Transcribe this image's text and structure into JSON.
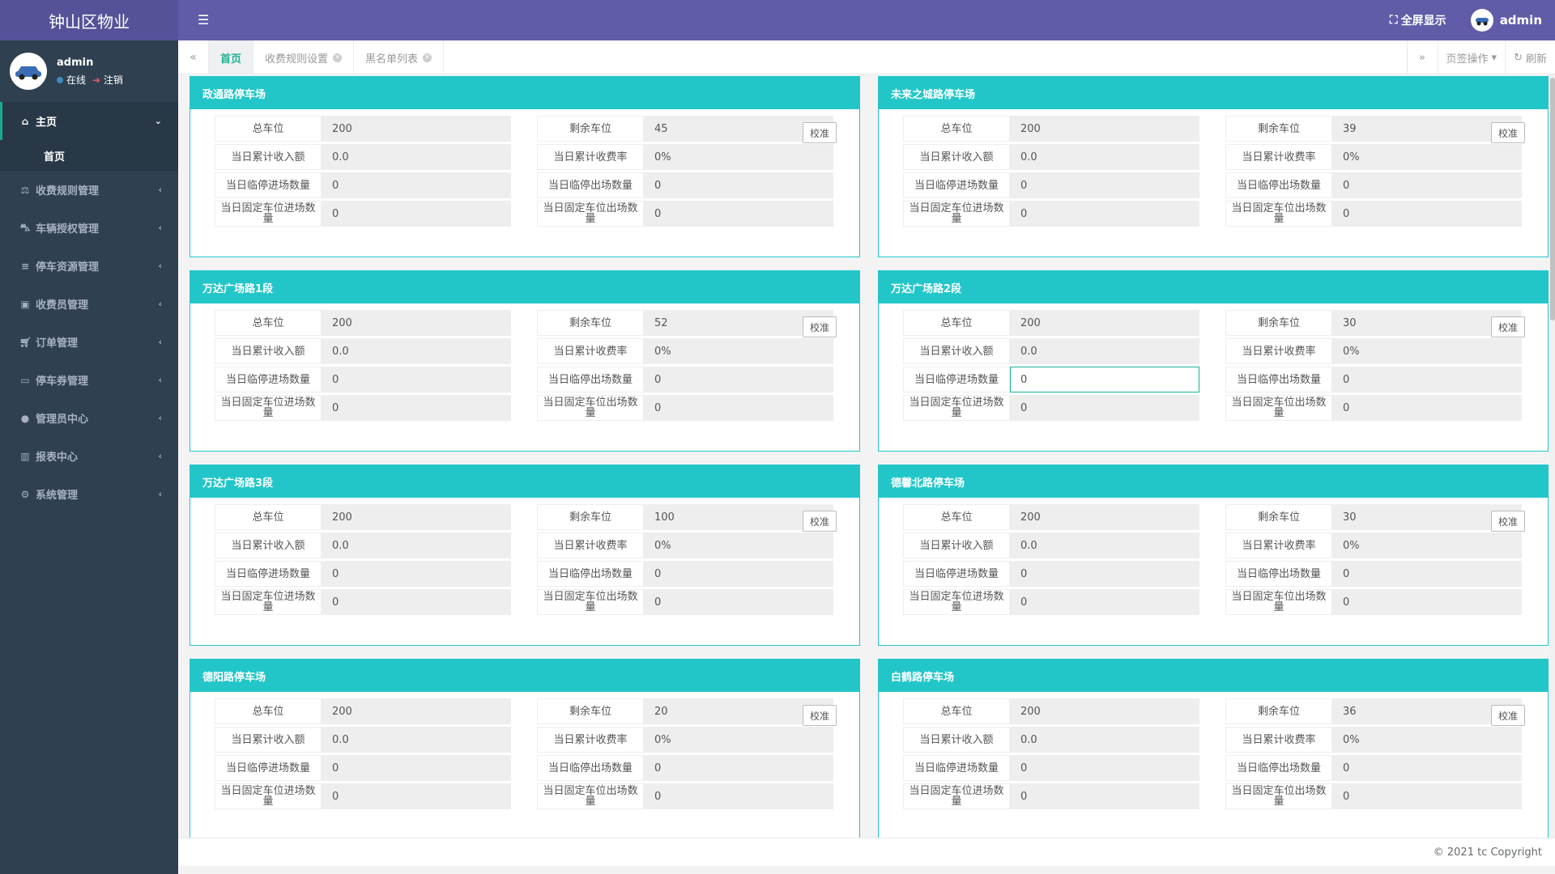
{
  "app": {
    "title": "钟山区物业"
  },
  "topbar": {
    "fullscreen_label": "全屏显示",
    "user_label": "admin"
  },
  "sidebar": {
    "user": {
      "name": "admin",
      "status": "在线",
      "logout": "注销"
    },
    "home": {
      "label": "主页",
      "sub": "首页"
    },
    "items": [
      {
        "label": "收费规则管理",
        "icon": "rules-icon"
      },
      {
        "label": "车辆授权管理",
        "icon": "car-icon"
      },
      {
        "label": "停车资源管理",
        "icon": "list-icon"
      },
      {
        "label": "收费员管理",
        "icon": "id-card-icon"
      },
      {
        "label": "订单管理",
        "icon": "cart-icon"
      },
      {
        "label": "停车券管理",
        "icon": "card-icon"
      },
      {
        "label": "管理员中心",
        "icon": "user-icon"
      },
      {
        "label": "报表中心",
        "icon": "bar-chart-icon"
      },
      {
        "label": "系统管理",
        "icon": "gear-icon"
      }
    ]
  },
  "tabs": {
    "items": [
      "首页",
      "收费规则设置",
      "黑名单列表"
    ],
    "page_ops": "页签操作",
    "refresh": "刷新"
  },
  "labels": {
    "total": "总车位",
    "remain": "剩余车位",
    "income": "当日累计收入额",
    "rate": "当日累计收费率",
    "temp_in": "当日临停进场数量",
    "temp_out": "当日临停出场数量",
    "fixed_in": "当日固定车位进场数量",
    "fixed_out": "当日固定车位出场数量",
    "calibrate": "校准"
  },
  "lots": [
    {
      "name": "政通路停车场",
      "total": "200",
      "remain": "45",
      "income": "0.0",
      "rate": "0%",
      "temp_in": "0",
      "temp_out": "0",
      "fixed_in": "0",
      "fixed_out": "0"
    },
    {
      "name": "未来之城路停车场",
      "total": "200",
      "remain": "39",
      "income": "0.0",
      "rate": "0%",
      "temp_in": "0",
      "temp_out": "0",
      "fixed_in": "0",
      "fixed_out": "0"
    },
    {
      "name": "万达广场路1段",
      "total": "200",
      "remain": "52",
      "income": "0.0",
      "rate": "0%",
      "temp_in": "0",
      "temp_out": "0",
      "fixed_in": "0",
      "fixed_out": "0"
    },
    {
      "name": "万达广场路2段",
      "total": "200",
      "remain": "30",
      "income": "0.0",
      "rate": "0%",
      "temp_in": "0",
      "temp_out": "0",
      "fixed_in": "0",
      "fixed_out": "0"
    },
    {
      "name": "万达广场路3段",
      "total": "200",
      "remain": "100",
      "income": "0.0",
      "rate": "0%",
      "temp_in": "0",
      "temp_out": "0",
      "fixed_in": "0",
      "fixed_out": "0"
    },
    {
      "name": "德馨北路停车场",
      "total": "200",
      "remain": "30",
      "income": "0.0",
      "rate": "0%",
      "temp_in": "0",
      "temp_out": "0",
      "fixed_in": "0",
      "fixed_out": "0"
    },
    {
      "name": "德阳路停车场",
      "total": "200",
      "remain": "20",
      "income": "0.0",
      "rate": "0%",
      "temp_in": "0",
      "temp_out": "0",
      "fixed_in": "0",
      "fixed_out": "0"
    },
    {
      "name": "白鹤路停车场",
      "total": "200",
      "remain": "36",
      "income": "0.0",
      "rate": "0%",
      "temp_in": "0",
      "temp_out": "0",
      "fixed_in": "0",
      "fixed_out": "0"
    }
  ],
  "footer": {
    "copyright": "© 2021 tc Copyright"
  }
}
